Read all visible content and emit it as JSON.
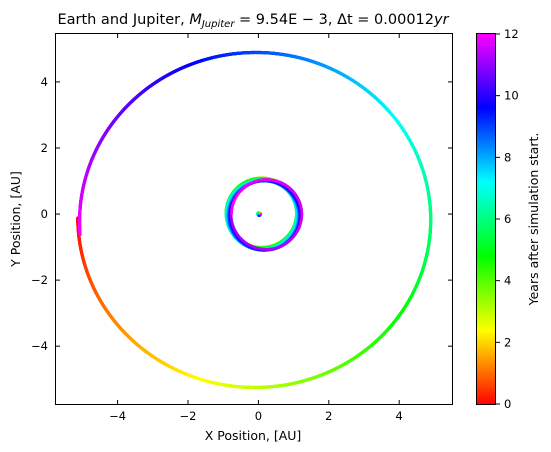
{
  "chart_data": {
    "type": "scatter",
    "title_prefix": "Earth and Jupiter, ",
    "title_math1": "M",
    "title_math1_sub": "Jupiter",
    "title_math1_rest": " = 9.54E − 3, Δt = 0.00012",
    "title_math2": "yr",
    "xlabel": "X Position, [AU]",
    "ylabel": "Y Position, [AU]",
    "colorbar_label": "Years after simulation start.",
    "xlim": [
      -5.75,
      5.5
    ],
    "ylim": [
      -5.75,
      5.45
    ],
    "x_ticks": [
      -4,
      -2,
      0,
      2,
      4
    ],
    "x_tick_labels": [
      "−4",
      "−2",
      "0",
      "2",
      "4"
    ],
    "y_ticks": [
      -4,
      -2,
      0,
      2,
      4
    ],
    "y_tick_labels": [
      "−4",
      "−2",
      "0",
      "2",
      "4"
    ],
    "colorbar_ticks": [
      0,
      2,
      4,
      6,
      8,
      10,
      12
    ],
    "colorbar_tick_labels": [
      "0",
      "2",
      "4",
      "6",
      "8",
      "10",
      "12"
    ],
    "colorbar_range": [
      0,
      12
    ],
    "colormap": "gist_rainbow",
    "colormap_stops": [
      "#ff0000",
      "#ffff00",
      "#00ff00",
      "#00ffff",
      "#0000ff",
      "#ff00ff"
    ],
    "series": [
      {
        "name": "",
        "description_hidden": true,
        "orbit": "jupiter",
        "semi_major_axis": 5.2,
        "period_years": 11.86,
        "time_range": [
          0,
          12
        ]
      },
      {
        "name": "",
        "orbit": "earth",
        "semi_major_axis": 1.0,
        "period_years": 1.0,
        "time_range": [
          0,
          12
        ]
      },
      {
        "name": "",
        "orbit": "sun",
        "semi_major_axis": 0.0,
        "period_years": 11.86,
        "time_range": [
          0,
          12
        ]
      }
    ],
    "grid": false
  }
}
